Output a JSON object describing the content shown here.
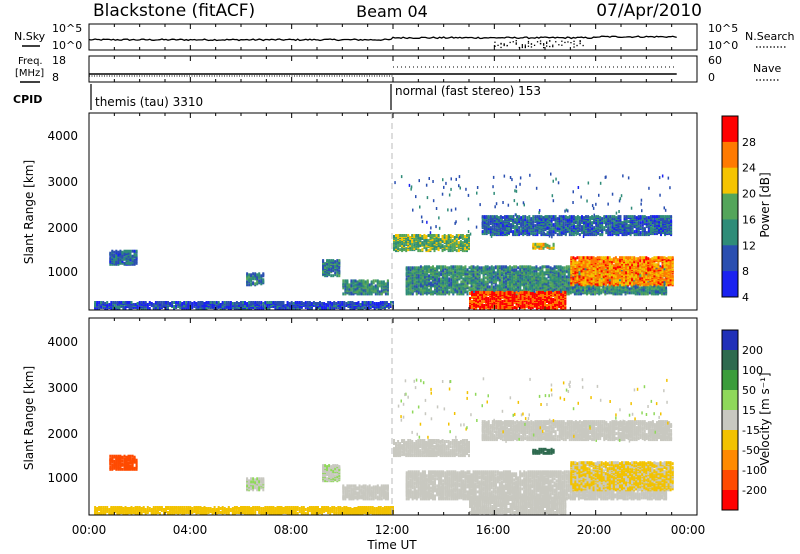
{
  "header": {
    "station": "Blackstone (fitACF)",
    "beam": "Beam 04",
    "date": "07/Apr/2010"
  },
  "panels": {
    "nsky": {
      "left_label": "N.Sky",
      "right_label": "N.Search",
      "left_ticks": [
        "10^5",
        "10^0"
      ],
      "right_ticks": [
        "10^5",
        "10^0"
      ]
    },
    "freq": {
      "left_label_line1": "Freq.",
      "left_label_line2": "[MHz]",
      "right_label": "Nave",
      "left_ticks": [
        "18",
        "8"
      ],
      "right_ticks": [
        "60",
        "0"
      ]
    },
    "cpid": {
      "label": "CPID",
      "modes": [
        {
          "name": "themis (tau) 3310"
        },
        {
          "name": "normal (fast stereo) 153"
        }
      ]
    },
    "power": {
      "ylabel": "Slant Range [km]",
      "yticks": [
        "4000",
        "3000",
        "2000",
        "1000"
      ],
      "cbar_label": "Power [dB]",
      "cbar_ticks": [
        "28",
        "24",
        "20",
        "16",
        "12",
        "8",
        "4"
      ],
      "cbar_colors": [
        "#ff0000",
        "#ff7a00",
        "#f5c400",
        "#54a55a",
        "#2f8c78",
        "#2a4fb0",
        "#1a22f0"
      ]
    },
    "velocity": {
      "ylabel": "Slant Range [km]",
      "yticks": [
        "4000",
        "3000",
        "2000",
        "1000"
      ],
      "cbar_label": "Velocity [m s⁻¹]",
      "cbar_ticks": [
        "200",
        "100",
        "50",
        "15",
        "-15",
        "-50",
        "-100",
        "-200"
      ],
      "cbar_colors": [
        "#2030b8",
        "#2f6a4f",
        "#3a9c3a",
        "#8fd85a",
        "#c8c8c0",
        "#f2c200",
        "#ff8a00",
        "#ff4a00",
        "#ff0000"
      ]
    }
  },
  "xaxis": {
    "label": "Time UT",
    "ticks": [
      "00:00",
      "04:00",
      "08:00",
      "12:00",
      "16:00",
      "20:00",
      "00:00"
    ]
  },
  "chart_data": {
    "type": "heatmap",
    "title": "Blackstone (fitACF)  Beam 04  07/Apr/2010",
    "xlabel": "Time UT",
    "ylabel": "Slant Range [km]",
    "xlim_hours": [
      0,
      24
    ],
    "ylim_km": [
      180,
      4500
    ],
    "mode_change_hour": 12.0,
    "power_db_range": [
      0,
      32
    ],
    "velocity_range": [
      -250,
      250
    ],
    "echo_regions": [
      {
        "t0": 0.8,
        "t1": 1.9,
        "r0": 1150,
        "r1": 1450,
        "power": 8,
        "velocity": -140
      },
      {
        "t0": 6.2,
        "t1": 6.9,
        "r0": 700,
        "r1": 950,
        "power": 10,
        "velocity": 10
      },
      {
        "t0": 9.2,
        "t1": 9.9,
        "r0": 900,
        "r1": 1250,
        "power": 10,
        "velocity": 10
      },
      {
        "t0": 10.0,
        "t1": 11.8,
        "r0": 500,
        "r1": 800,
        "power": 12,
        "velocity": 0
      },
      {
        "t0": 0.2,
        "t1": 12.0,
        "r0": 180,
        "r1": 320,
        "power": 6,
        "velocity": -30
      },
      {
        "t0": 12.0,
        "t1": 15.0,
        "r0": 1450,
        "r1": 1800,
        "power": 16,
        "velocity": 0
      },
      {
        "t0": 12.5,
        "t1": 22.8,
        "r0": 500,
        "r1": 1100,
        "power": 12,
        "velocity": 0
      },
      {
        "t0": 15.0,
        "t1": 18.8,
        "r0": 180,
        "r1": 550,
        "power": 28,
        "velocity": 0
      },
      {
        "t0": 17.5,
        "t1": 18.3,
        "r0": 1500,
        "r1": 1600,
        "power": 20,
        "velocity": 150
      },
      {
        "t0": 19.0,
        "t1": 23.0,
        "r0": 700,
        "r1": 1300,
        "power": 24,
        "velocity": -20
      },
      {
        "t0": 15.5,
        "t1": 23.0,
        "r0": 1800,
        "r1": 2200,
        "power": 8,
        "velocity": 0
      }
    ]
  }
}
